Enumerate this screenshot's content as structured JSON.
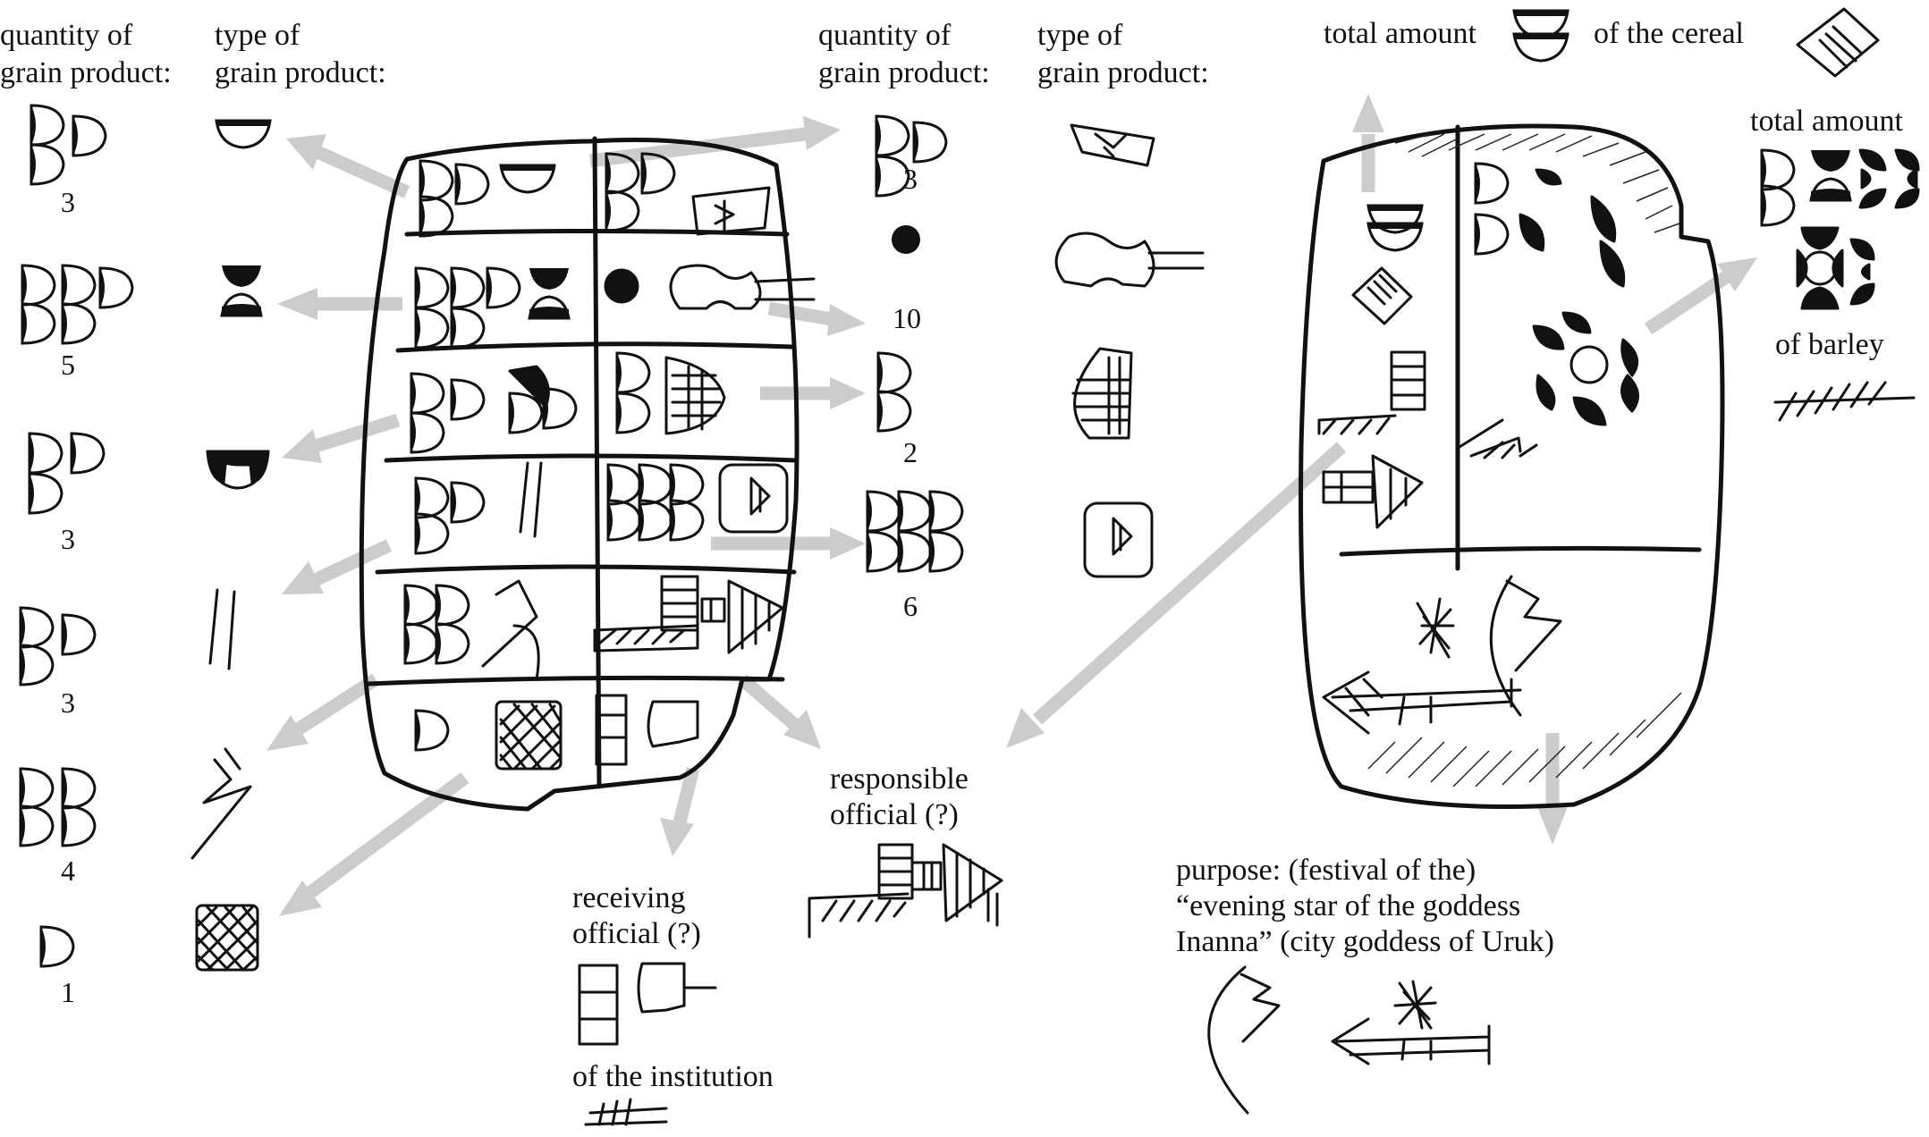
{
  "left_panel": {
    "heading_quantity": [
      "quantity of",
      "grain product:"
    ],
    "heading_type": [
      "type of",
      "grain product:"
    ],
    "quantities": [
      "3",
      "5",
      "3",
      "3",
      "4",
      "1"
    ]
  },
  "middle_panel": {
    "heading_quantity": [
      "quantity of",
      "grain product:"
    ],
    "heading_type": [
      "type of",
      "grain product:"
    ],
    "quantities": [
      "3",
      "10",
      "2",
      "6"
    ]
  },
  "bottom_labels": {
    "receiving_official": [
      "receiving",
      "official (?)"
    ],
    "of_institution": "of the institution",
    "responsible_official": [
      "responsible",
      "official (?)"
    ],
    "purpose": [
      "purpose: (festival of the)",
      "“evening star of the goddess",
      "Inanna” (city goddess of Uruk)"
    ]
  },
  "right_panel": {
    "total_amount_top": "total amount",
    "of_the_cereal": "of the cereal",
    "total_amount_right": "total amount",
    "of_barley": "of barley"
  },
  "icons": [
    "quantity-d-sign-icon",
    "bowl-sign-icon",
    "hourglass-sign-icon",
    "cuneiform-tablet-icon",
    "pot-sign-icon",
    "star-sign-icon",
    "crosshatch-square-icon"
  ],
  "colors": {
    "arrow": "#cccccc",
    "ink": "#111111",
    "background": "#ffffff"
  }
}
